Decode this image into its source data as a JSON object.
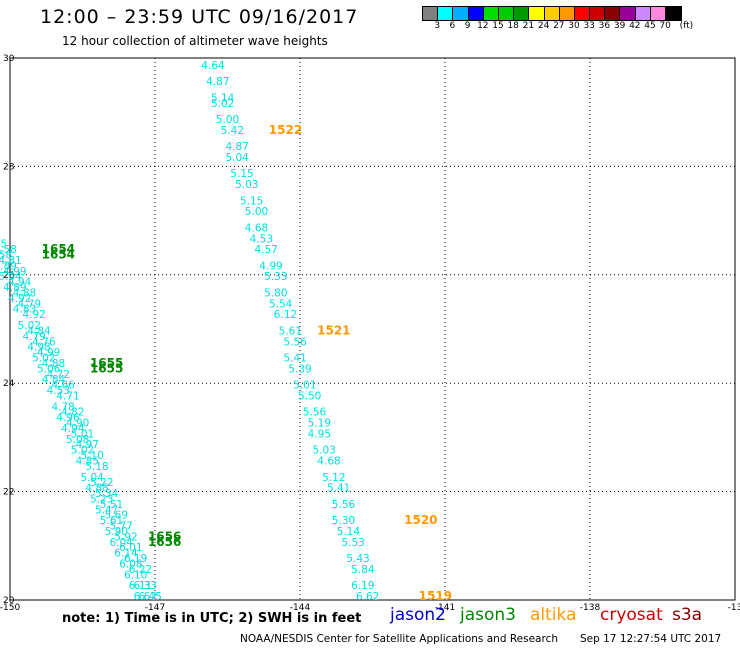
{
  "header": {
    "title": "12:00 – 23:59 UTC 09/16/2017",
    "subtitle": "12 hour collection of altimeter wave heights"
  },
  "colorbar": {
    "unit": "(ft)",
    "colors": [
      "#808080",
      "#00ffff",
      "#00b0ff",
      "#0000ff",
      "#00dd00",
      "#00cc00",
      "#009900",
      "#ffff00",
      "#ffcc00",
      "#ff9900",
      "#ff0000",
      "#cc0000",
      "#880000",
      "#990099",
      "#cc88ff",
      "#ff88dd",
      "#000000"
    ],
    "labels": [
      "3",
      "6",
      "9",
      "12",
      "15",
      "18",
      "21",
      "24",
      "27",
      "30",
      "33",
      "36",
      "39",
      "42",
      "45",
      "70"
    ]
  },
  "axes": {
    "x_ticks": [
      "-150",
      "-147",
      "-144",
      "-141",
      "-138",
      "-13"
    ],
    "y_ticks": [
      "30",
      "28",
      "26",
      "24",
      "22",
      "20"
    ]
  },
  "chart_data": {
    "type": "scatter",
    "lon_range": [
      -150,
      -135
    ],
    "lat_range": [
      20,
      30
    ],
    "tracks": [
      {
        "color": "#00e0e0",
        "points": [
          [
            -145.8,
            29.8,
            "4.64"
          ],
          [
            -145.7,
            29.5,
            "4.87"
          ],
          [
            -145.6,
            29.2,
            "5.14"
          ],
          [
            -145.6,
            29.1,
            "5.02"
          ],
          [
            -145.5,
            28.8,
            "5.00"
          ],
          [
            -145.4,
            28.6,
            "5.42"
          ],
          [
            -145.3,
            28.3,
            "4.87"
          ],
          [
            -145.3,
            28.1,
            "5.04"
          ],
          [
            -145.2,
            27.8,
            "5.15"
          ],
          [
            -145.1,
            27.6,
            "5.03"
          ],
          [
            -145.0,
            27.3,
            "5.15"
          ],
          [
            -144.9,
            27.1,
            "5.00"
          ],
          [
            -144.9,
            26.8,
            "4.68"
          ],
          [
            -144.8,
            26.6,
            "4.53"
          ],
          [
            -144.7,
            26.4,
            "4.57"
          ],
          [
            -144.6,
            26.1,
            "4.99"
          ],
          [
            -144.5,
            25.9,
            "5.33"
          ],
          [
            -144.5,
            25.6,
            "5.80"
          ],
          [
            -144.4,
            25.4,
            "5.54"
          ],
          [
            -144.3,
            25.2,
            "6.12"
          ],
          [
            -144.2,
            24.9,
            "5.61"
          ],
          [
            -144.1,
            24.7,
            "5.56"
          ],
          [
            -144.1,
            24.4,
            "5.41"
          ],
          [
            -144.0,
            24.2,
            "5.39"
          ],
          [
            -143.9,
            23.9,
            "5.01"
          ],
          [
            -143.8,
            23.7,
            "5.50"
          ],
          [
            -143.7,
            23.4,
            "5.56"
          ],
          [
            -143.6,
            23.2,
            "5.19"
          ],
          [
            -143.6,
            23.0,
            "4.95"
          ],
          [
            -143.5,
            22.7,
            "5.03"
          ],
          [
            -143.4,
            22.5,
            "4.68"
          ],
          [
            -143.3,
            22.2,
            "5.12"
          ],
          [
            -143.2,
            22.0,
            "5.41"
          ],
          [
            -143.1,
            21.7,
            "5.56"
          ],
          [
            -143.1,
            21.4,
            "5.30"
          ],
          [
            -143.0,
            21.2,
            "5.14"
          ],
          [
            -142.9,
            21.0,
            "5.53"
          ],
          [
            -142.8,
            20.7,
            "5.43"
          ],
          [
            -142.7,
            20.5,
            "5.84"
          ],
          [
            -142.7,
            20.2,
            "6.19"
          ],
          [
            -142.6,
            20.0,
            "6.62"
          ]
        ]
      },
      {
        "color": "#00e0e0",
        "points": [
          [
            -150.3,
            26.5,
            "4.45"
          ],
          [
            -150.2,
            26.3,
            "4.58"
          ],
          [
            -150.1,
            26.1,
            "4.89"
          ],
          [
            -150.0,
            25.9,
            "5.04"
          ],
          [
            -149.9,
            25.7,
            "4.89"
          ],
          [
            -149.8,
            25.5,
            "4.92"
          ],
          [
            -149.7,
            25.3,
            "4.83"
          ],
          [
            -149.6,
            25.0,
            "5.02"
          ],
          [
            -149.5,
            24.8,
            "4.79"
          ],
          [
            -149.4,
            24.6,
            "4.98"
          ],
          [
            -149.3,
            24.4,
            "5.02"
          ],
          [
            -149.2,
            24.2,
            "5.06"
          ],
          [
            -149.1,
            24.0,
            "4.84"
          ],
          [
            -149.0,
            23.8,
            "4.53"
          ],
          [
            -148.9,
            23.5,
            "4.78"
          ],
          [
            -148.8,
            23.3,
            "4.96"
          ],
          [
            -148.7,
            23.1,
            "4.94"
          ],
          [
            -148.6,
            22.9,
            "5.08"
          ],
          [
            -148.5,
            22.7,
            "5.02"
          ],
          [
            -148.4,
            22.5,
            "4.85"
          ],
          [
            -148.3,
            22.2,
            "5.04"
          ],
          [
            -148.2,
            22.0,
            "4.88"
          ],
          [
            -148.1,
            21.8,
            "5.23"
          ],
          [
            -148.0,
            21.6,
            "5.47"
          ],
          [
            -147.9,
            21.4,
            "5.61"
          ],
          [
            -147.8,
            21.2,
            "5.90"
          ],
          [
            -147.7,
            21.0,
            "6.04"
          ],
          [
            -147.6,
            20.8,
            "6.14"
          ],
          [
            -147.5,
            20.6,
            "6.08"
          ],
          [
            -147.4,
            20.4,
            "6.10"
          ],
          [
            -147.3,
            20.2,
            "6.11"
          ],
          [
            -147.2,
            20.0,
            "6.62"
          ]
        ]
      },
      {
        "color": "#00e0e0",
        "points": [
          [
            -150.1,
            26.4,
            "4.58"
          ],
          [
            -150.0,
            26.2,
            "4.81"
          ],
          [
            -149.9,
            26.0,
            "4.99"
          ],
          [
            -149.8,
            25.8,
            "4.94"
          ],
          [
            -149.7,
            25.6,
            "4.88"
          ],
          [
            -149.6,
            25.4,
            "4.79"
          ],
          [
            -149.5,
            25.2,
            "4.92"
          ],
          [
            -149.4,
            24.9,
            "4.84"
          ],
          [
            -149.3,
            24.7,
            "4.76"
          ],
          [
            -149.2,
            24.5,
            "4.99"
          ],
          [
            -149.1,
            24.3,
            "4.88"
          ],
          [
            -149.0,
            24.1,
            "4.72"
          ],
          [
            -148.9,
            23.9,
            "4.66"
          ],
          [
            -148.8,
            23.7,
            "4.71"
          ],
          [
            -148.7,
            23.4,
            "4.82"
          ],
          [
            -148.6,
            23.2,
            "4.90"
          ],
          [
            -148.5,
            23.0,
            "5.01"
          ],
          [
            -148.4,
            22.8,
            "4.97"
          ],
          [
            -148.3,
            22.6,
            "5.10"
          ],
          [
            -148.2,
            22.4,
            "5.18"
          ],
          [
            -148.1,
            22.1,
            "5.22"
          ],
          [
            -148.0,
            21.9,
            "5.34"
          ],
          [
            -147.9,
            21.7,
            "5.51"
          ],
          [
            -147.8,
            21.5,
            "5.69"
          ],
          [
            -147.7,
            21.3,
            "5.77"
          ],
          [
            -147.6,
            21.1,
            "5.92"
          ],
          [
            -147.5,
            20.9,
            "6.01"
          ],
          [
            -147.4,
            20.7,
            "6.19"
          ],
          [
            -147.3,
            20.5,
            "6.22"
          ],
          [
            -147.2,
            20.2,
            "6.33"
          ],
          [
            -147.1,
            20.0,
            "6.45"
          ]
        ]
      }
    ],
    "time_labels": [
      {
        "lon": -144.3,
        "lat": 28.6,
        "text": "1522",
        "color": "#ff9900"
      },
      {
        "lon": -143.3,
        "lat": 24.9,
        "text": "1521",
        "color": "#ff9900"
      },
      {
        "lon": -141.5,
        "lat": 21.4,
        "text": "1520",
        "color": "#ff9900"
      },
      {
        "lon": -141.2,
        "lat": 20.0,
        "text": "1519",
        "color": "#ff9900"
      },
      {
        "lon": -149.0,
        "lat": 26.4,
        "text": "1654",
        "color": "#008800"
      },
      {
        "lon": -149.0,
        "lat": 26.3,
        "text": "1654",
        "color": "#008800"
      },
      {
        "lon": -148.0,
        "lat": 24.3,
        "text": "1655",
        "color": "#008800"
      },
      {
        "lon": -148.0,
        "lat": 24.2,
        "text": "1655",
        "color": "#008800"
      },
      {
        "lon": -146.8,
        "lat": 21.1,
        "text": "1656",
        "color": "#008800"
      },
      {
        "lon": -146.8,
        "lat": 21.0,
        "text": "1656",
        "color": "#008800"
      }
    ]
  },
  "footer": {
    "note": "note: 1) Time is in UTC; 2) SWH is in feet",
    "satellites": [
      {
        "name": "jason2",
        "color": "#0000cc"
      },
      {
        "name": "jason3",
        "color": "#008800"
      },
      {
        "name": "altika",
        "color": "#ff9900"
      },
      {
        "name": "cryosat",
        "color": "#cc0000"
      },
      {
        "name": "s3a",
        "color": "#880000"
      }
    ],
    "credit": "NOAA/NESDIS Center for Satellite Applications and Research",
    "timestamp": "Sep 17 12:27:54 UTC 2017"
  }
}
